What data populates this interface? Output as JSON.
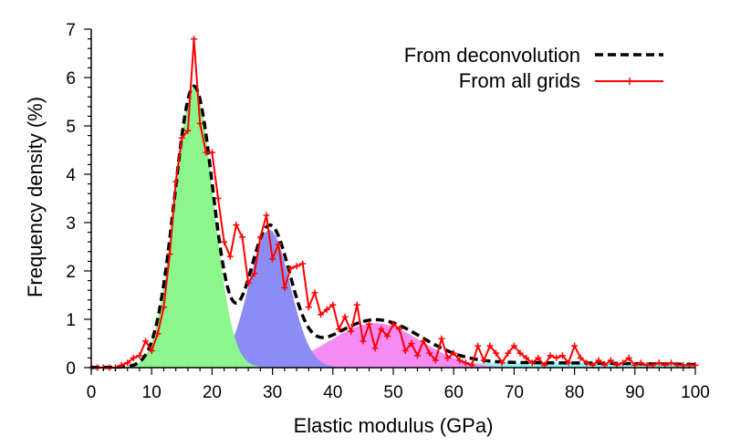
{
  "chart_data": {
    "type": "line",
    "title": "",
    "xlabel": "Elastic modulus (GPa)",
    "ylabel": "Frequency density (%)",
    "xlim": [
      0,
      100
    ],
    "ylim": [
      0,
      7
    ],
    "x_ticks": [
      "0",
      "10",
      "20",
      "30",
      "40",
      "50",
      "60",
      "70",
      "80",
      "90",
      "100"
    ],
    "y_ticks": [
      "0",
      "1",
      "2",
      "3",
      "4",
      "5",
      "6",
      "7"
    ],
    "legend_position": "top-right",
    "colors": {
      "deconvolution": "#000000",
      "grids": "#ff0000",
      "phase1": "#8cf58c",
      "phase2": "#8c8cf5",
      "phase3": "#f58cf5",
      "phase4": "#8cf5f5"
    },
    "series": [
      {
        "name": "From deconvolution",
        "style": "dashed",
        "key": "deconvolution"
      },
      {
        "name": "From all grids",
        "style": "line-marker",
        "key": "grids"
      }
    ],
    "components": [
      {
        "mean": 17,
        "sd": 3.2,
        "peak": 5.8,
        "color_key": "phase1"
      },
      {
        "mean": 29.5,
        "sd": 3.4,
        "peak": 2.85,
        "color_key": "phase2"
      },
      {
        "mean": 47,
        "sd": 7.5,
        "peak": 0.92,
        "color_key": "phase3"
      },
      {
        "mean": 72,
        "sd": 30,
        "peak": 0.1,
        "color_key": "phase4"
      }
    ],
    "grid_points": {
      "x": [
        0,
        1,
        2,
        3,
        4,
        5,
        6,
        7,
        8,
        9,
        10,
        11,
        12,
        13,
        14,
        15,
        16,
        17,
        18,
        19,
        20,
        21,
        22,
        23,
        24,
        25,
        26,
        27,
        28,
        29,
        30,
        31,
        32,
        33,
        34,
        35,
        36,
        37,
        38,
        39,
        40,
        41,
        42,
        43,
        44,
        45,
        46,
        47,
        48,
        49,
        50,
        51,
        52,
        53,
        54,
        55,
        56,
        57,
        58,
        59,
        60,
        61,
        62,
        63,
        64,
        65,
        66,
        67,
        68,
        69,
        70,
        71,
        72,
        73,
        74,
        75,
        76,
        77,
        78,
        79,
        80,
        81,
        82,
        83,
        84,
        85,
        86,
        87,
        88,
        89,
        90,
        91,
        92,
        93,
        94,
        95,
        96,
        97,
        98,
        99,
        100
      ],
      "y": [
        0,
        0,
        0,
        0,
        0,
        0.05,
        0.1,
        0.2,
        0.25,
        0.55,
        0.35,
        0.7,
        1.25,
        2.35,
        3.85,
        4.75,
        4.9,
        6.8,
        5.05,
        4.45,
        4.45,
        3.5,
        2.6,
        2.3,
        2.95,
        2.7,
        1.75,
        1.95,
        2.7,
        3.15,
        2.25,
        2.55,
        1.65,
        2.05,
        2.1,
        2.15,
        1.25,
        1.55,
        1.1,
        1.2,
        1.3,
        0.8,
        1.05,
        0.75,
        1.3,
        0.55,
        0.9,
        0.4,
        0.8,
        0.65,
        0.9,
        0.8,
        0.35,
        0.5,
        0.25,
        0.55,
        0.3,
        0.15,
        0.6,
        0.2,
        0.3,
        0.15,
        0.1,
        0.05,
        0.45,
        0.15,
        0.45,
        0.3,
        0.1,
        0.3,
        0.45,
        0.3,
        0.2,
        0.1,
        0.2,
        0.05,
        0.25,
        0.2,
        0.25,
        0.1,
        0.45,
        0.2,
        0.1,
        0.05,
        0.15,
        0.05,
        0.15,
        0.05,
        0.1,
        0.2,
        0.05,
        0.1,
        0.05,
        0.05,
        0.1,
        0.05,
        0.1,
        0.05,
        0.05,
        0.05,
        0.05
      ]
    }
  }
}
